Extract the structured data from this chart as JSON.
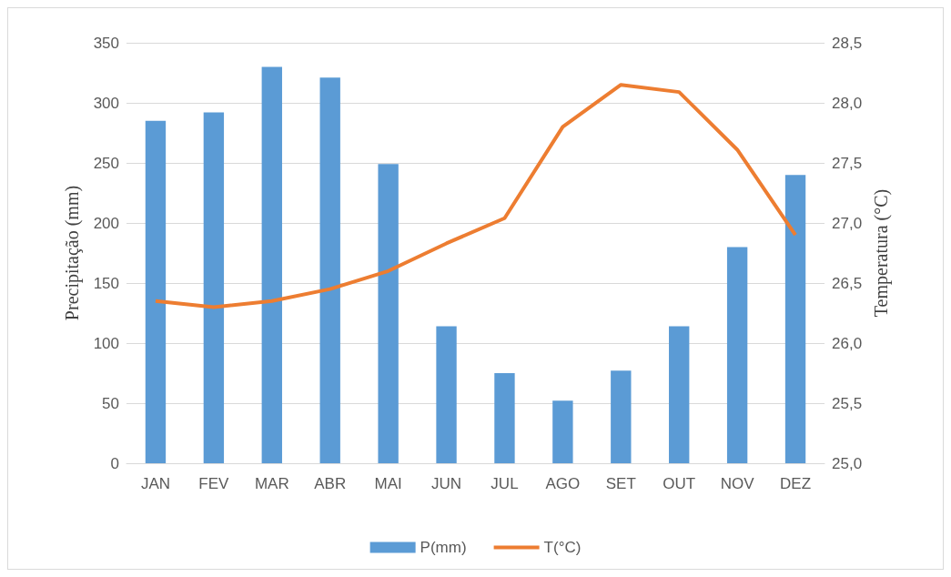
{
  "chart_data": {
    "type": "bar",
    "categories": [
      "JAN",
      "FEV",
      "MAR",
      "ABR",
      "MAI",
      "JUN",
      "JUL",
      "AGO",
      "SET",
      "OUT",
      "NOV",
      "DEZ"
    ],
    "ylabel": "Precipitação (mm)",
    "y2label": "Temperatura (°C)",
    "series": [
      {
        "name": "P(mm)",
        "color": "#5b9bd5",
        "values": [
          285,
          292,
          330,
          321,
          249,
          114,
          75,
          52,
          77,
          114,
          180,
          240
        ]
      },
      {
        "name": "T(°C)",
        "type": "line",
        "axis": "y2",
        "color": "#ed7d31",
        "marker": "none",
        "values": [
          26.35,
          26.3,
          26.35,
          26.45,
          26.6,
          26.83,
          27.04,
          27.8,
          28.15,
          28.09,
          27.61,
          26.9
        ]
      }
    ],
    "ylim": [
      0,
      350
    ],
    "yticks": [
      0,
      50,
      100,
      150,
      200,
      250,
      300,
      350
    ],
    "y2lim": [
      25,
      28.5
    ],
    "y2ticks": [
      {
        "value": 25,
        "label": "25,0"
      },
      {
        "value": 25.5,
        "label": "25,5"
      },
      {
        "value": 26,
        "label": "26,0"
      },
      {
        "value": 26.5,
        "label": "26,5"
      },
      {
        "value": 27,
        "label": "27,0"
      },
      {
        "value": 27.5,
        "label": "27,5"
      },
      {
        "value": 28,
        "label": "28,0"
      },
      {
        "value": 28.5,
        "label": "28,5"
      }
    ],
    "grid": "y",
    "legend": "bottom"
  }
}
